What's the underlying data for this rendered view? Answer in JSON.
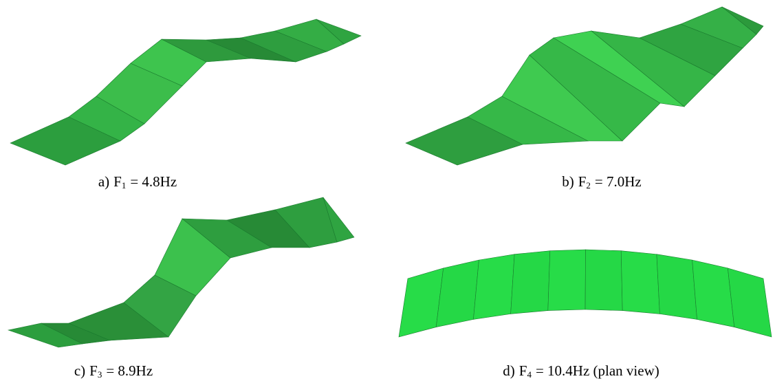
{
  "panels": [
    {
      "label": "a)",
      "symbol": "F",
      "subscript": "1",
      "rest": "= 4.8Hz"
    },
    {
      "label": "b)",
      "symbol": "F",
      "subscript": "2",
      "rest": "= 7.0Hz"
    },
    {
      "label": "c)",
      "symbol": "F",
      "subscript": "3",
      "rest": "= 8.9Hz"
    },
    {
      "label": "d)",
      "symbol": "F",
      "subscript": "4",
      "rest": "= 10.4Hz (plan view)"
    }
  ]
}
